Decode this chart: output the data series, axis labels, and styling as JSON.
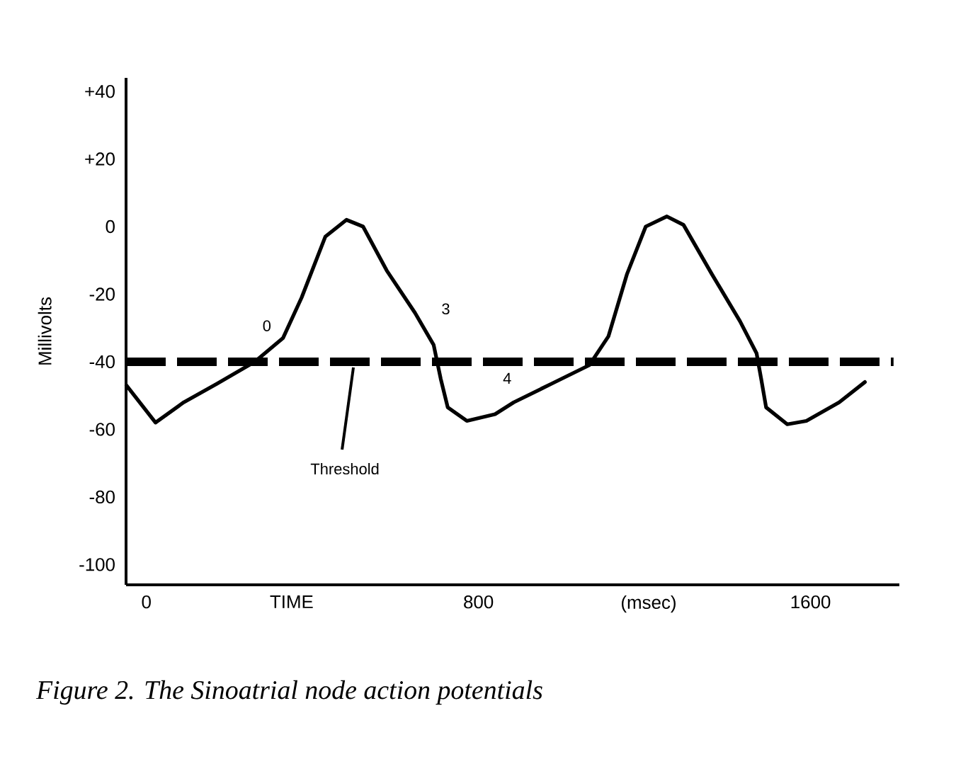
{
  "chart_data": {
    "type": "line",
    "ylabel": "Millivolts",
    "xlim": [
      -49,
      1814
    ],
    "ylim": [
      -106,
      44
    ],
    "xticks": [
      0,
      {
        "value": 350,
        "label": "TIME"
      },
      800,
      {
        "value": 1210,
        "label": "(msec)"
      },
      1600
    ],
    "yticks": [
      {
        "value": 40,
        "label": "+40"
      },
      {
        "value": 20,
        "label": "+20"
      },
      0,
      -20,
      -40,
      -60,
      -80,
      -100
    ],
    "marker": "none",
    "line_style": "solid",
    "series": [
      {
        "color": "#000000",
        "x": [
          -48,
          22,
          90,
          170,
          261,
          329,
          374,
          431,
          482,
          522,
          579,
          647,
          692,
          709,
          726,
          772,
          840,
          885,
          976,
          1067,
          1113,
          1158,
          1203,
          1254,
          1294,
          1362,
          1430,
          1470,
          1481,
          1493,
          1544,
          1590,
          1669,
          1731
        ],
        "values": [
          -47,
          -58,
          -52,
          -46.5,
          -40,
          -33,
          -21,
          -3,
          2,
          0,
          -13,
          -25.5,
          -35,
          -45,
          -53.5,
          -57.5,
          -55.5,
          -52,
          -46.5,
          -41,
          -32.5,
          -14,
          0,
          3,
          0.5,
          -14,
          -28,
          -37.5,
          -45,
          -53.5,
          -58.5,
          -57.5,
          -52,
          -46
        ]
      }
    ],
    "ref_lines": [
      {
        "axis": "y",
        "value": -40,
        "color": "#000000",
        "line_style": "dashed",
        "label": "Threshold"
      }
    ],
    "annotations": [
      {
        "text": "0",
        "x": 261,
        "y": -40
      },
      {
        "text": "3",
        "x": 692,
        "y": -35
      },
      {
        "text": "4",
        "x": 840,
        "y": -55.5
      },
      "Figure 2. The Sinoatrial node action potentials"
    ]
  }
}
